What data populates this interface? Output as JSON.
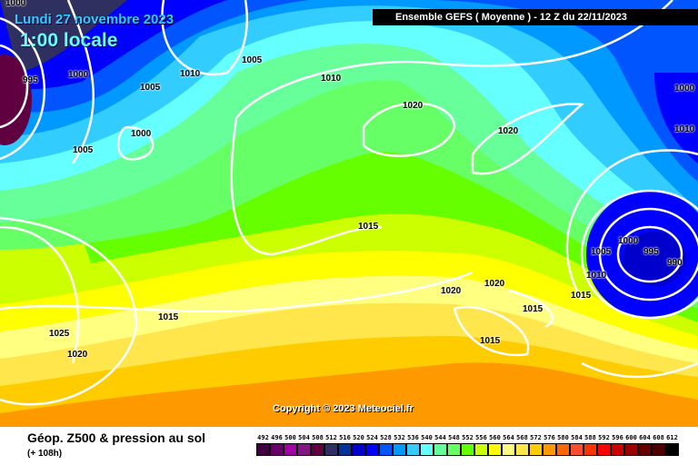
{
  "header": {
    "date": "Lundi 27 novembre 2023",
    "local_time": "1:00 locale",
    "banner": "Ensemble GEFS  ( Moyenne )  -  12 Z du 22/11/2023"
  },
  "copyright": "Copyright © 2023 Meteociel.fr",
  "footer": {
    "title": "Géop. Z500 & pression au sol",
    "subtitle": "(+ 108h)"
  },
  "legend": {
    "labels": [
      "492",
      "496",
      "500",
      "504",
      "508",
      "512",
      "516",
      "520",
      "524",
      "528",
      "532",
      "536",
      "540",
      "544",
      "548",
      "552",
      "556",
      "560",
      "564",
      "568",
      "572",
      "576",
      "580",
      "584",
      "588",
      "592",
      "596",
      "600",
      "604",
      "608",
      "612"
    ],
    "colors": [
      "#400040",
      "#660066",
      "#a000a0",
      "#801880",
      "#600040",
      "#303060",
      "#003399",
      "#0000cc",
      "#0000ff",
      "#0055ff",
      "#0099ff",
      "#33ccff",
      "#66ffff",
      "#66ff99",
      "#66ff66",
      "#66ff00",
      "#ccff00",
      "#ffff00",
      "#ffff80",
      "#ffe64d",
      "#ffcc00",
      "#ff9900",
      "#ff6600",
      "#ff4d33",
      "#ff3300",
      "#ff0000",
      "#cc0000",
      "#990000",
      "#660000",
      "#4d0000",
      "#000000"
    ]
  },
  "isobar_labels": [
    "1000",
    "995",
    "1000",
    "1005",
    "1010",
    "1005",
    "1010",
    "1020",
    "1000",
    "1005",
    "1020",
    "1015",
    "1005",
    "1000",
    "995",
    "990",
    "1010",
    "1015",
    "1020",
    "1020",
    "1015",
    "1015",
    "1015",
    "1025",
    "1020",
    "1010",
    "1000"
  ]
}
